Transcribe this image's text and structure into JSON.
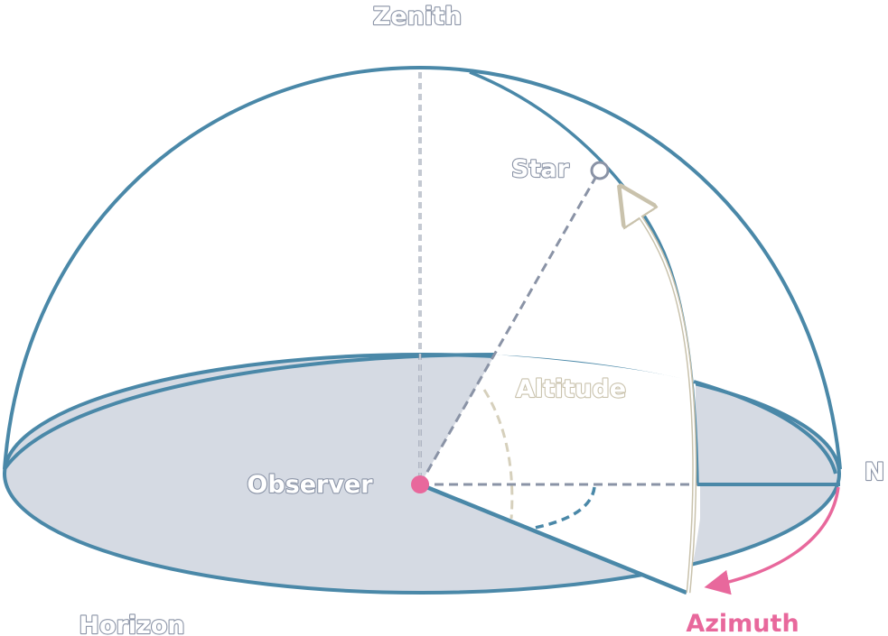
{
  "labels": {
    "zenith": "Zenith",
    "star": "Star",
    "altitude": "Altitude",
    "observer": "Observer",
    "north": "N",
    "horizon": "Horizon",
    "azimuth": "Azimuth"
  },
  "colors": {
    "dome_outline": "#4a88a8",
    "horizon_fill": "#d5dae3",
    "guide_dashes": "#8a93a6",
    "altitude_arc": "#d6d0bc",
    "azimuth_accent": "#e8689c",
    "observer_dot": "#e8689c"
  }
}
